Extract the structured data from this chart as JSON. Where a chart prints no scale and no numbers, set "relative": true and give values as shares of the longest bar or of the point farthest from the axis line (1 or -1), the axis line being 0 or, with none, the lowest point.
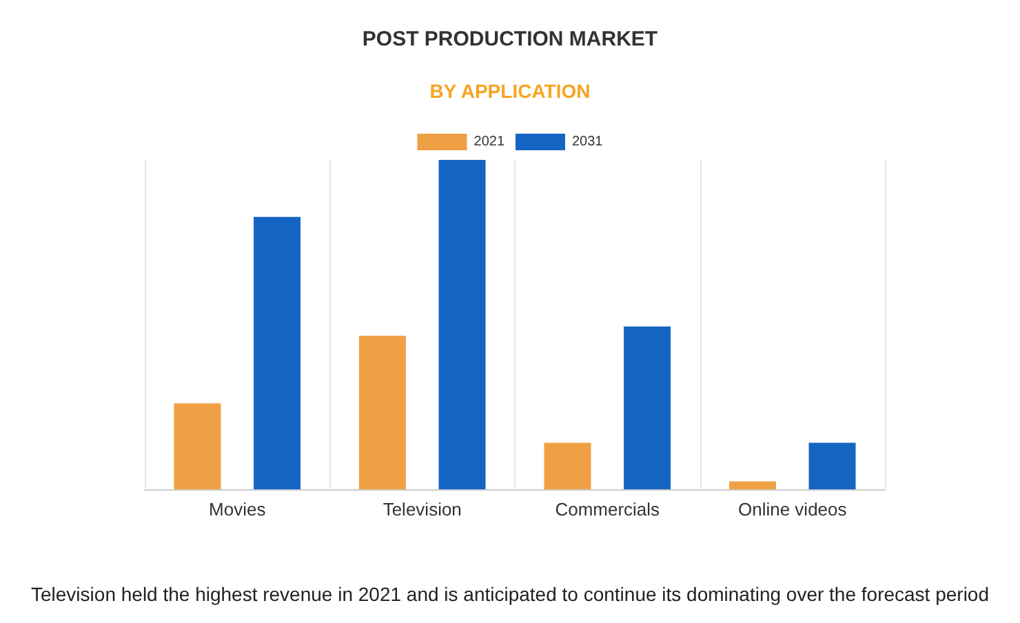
{
  "chart_data": {
    "type": "bar",
    "title": "POST PRODUCTION MARKET",
    "subtitle": "BY APPLICATION",
    "categories": [
      "Movies",
      "Television",
      "Commercials",
      "Online videos"
    ],
    "series": [
      {
        "name": "2021",
        "color": "#f0a044",
        "values": [
          0.261,
          0.466,
          0.141,
          0.024
        ]
      },
      {
        "name": "2031",
        "color": "#1565c4",
        "values": [
          0.827,
          1,
          0.494,
          0.141
        ]
      }
    ],
    "relative": true,
    "grid": true,
    "legend": "top",
    "annotations": [
      "Television held the highest revenue in 2021 and is anticipated to continue its dominating over the forecast period"
    ]
  }
}
